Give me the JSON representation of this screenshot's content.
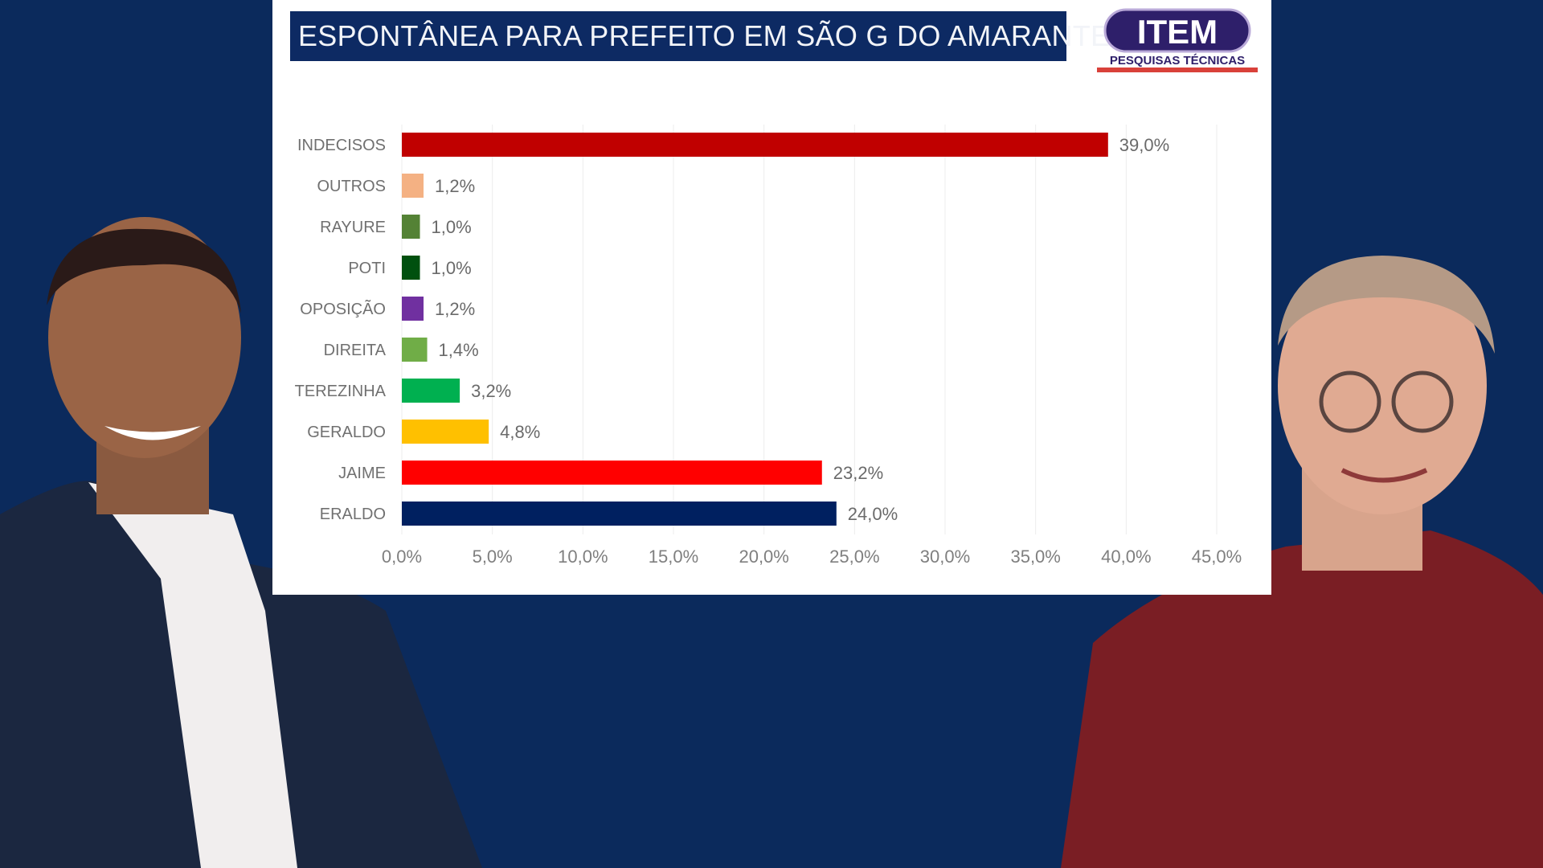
{
  "chart_data": {
    "type": "bar",
    "orientation": "horizontal",
    "title": "ESPONTÂNEA PARA PREFEITO EM SÃO G DO AMARANTE",
    "categories": [
      "INDECISOS",
      "OUTROS",
      "RAYURE",
      "POTI",
      "OPOSIÇÃO",
      "DIREITA",
      "TEREZINHA",
      "GERALDO",
      "JAIME",
      "ERALDO"
    ],
    "values": [
      39.0,
      1.2,
      1.0,
      1.0,
      1.2,
      1.4,
      3.2,
      4.8,
      23.2,
      24.0
    ],
    "value_labels": [
      "39,0%",
      "1,2%",
      "1,0%",
      "1,0%",
      "1,2%",
      "1,4%",
      "3,2%",
      "4,8%",
      "23,2%",
      "24,0%"
    ],
    "colors": [
      "#c00000",
      "#f4b183",
      "#548235",
      "#00500f",
      "#7030a0",
      "#70ad47",
      "#00b050",
      "#ffc000",
      "#ff0000",
      "#002060"
    ],
    "xlim": [
      0,
      45
    ],
    "xticks": [
      0,
      5,
      10,
      15,
      20,
      25,
      30,
      35,
      40,
      45
    ],
    "xtick_labels": [
      "0,0%",
      "5,0%",
      "10,0%",
      "15,0%",
      "20,0%",
      "25,0%",
      "30,0%",
      "35,0%",
      "40,0%",
      "45,0%"
    ],
    "grid": true,
    "xlabel": "",
    "ylabel": ""
  },
  "logo": {
    "name": "ITEM",
    "tagline": "PESQUISAS TÉCNICAS"
  },
  "colors": {
    "background": "#0b2a5c",
    "title_bar": "#0d2a63"
  }
}
